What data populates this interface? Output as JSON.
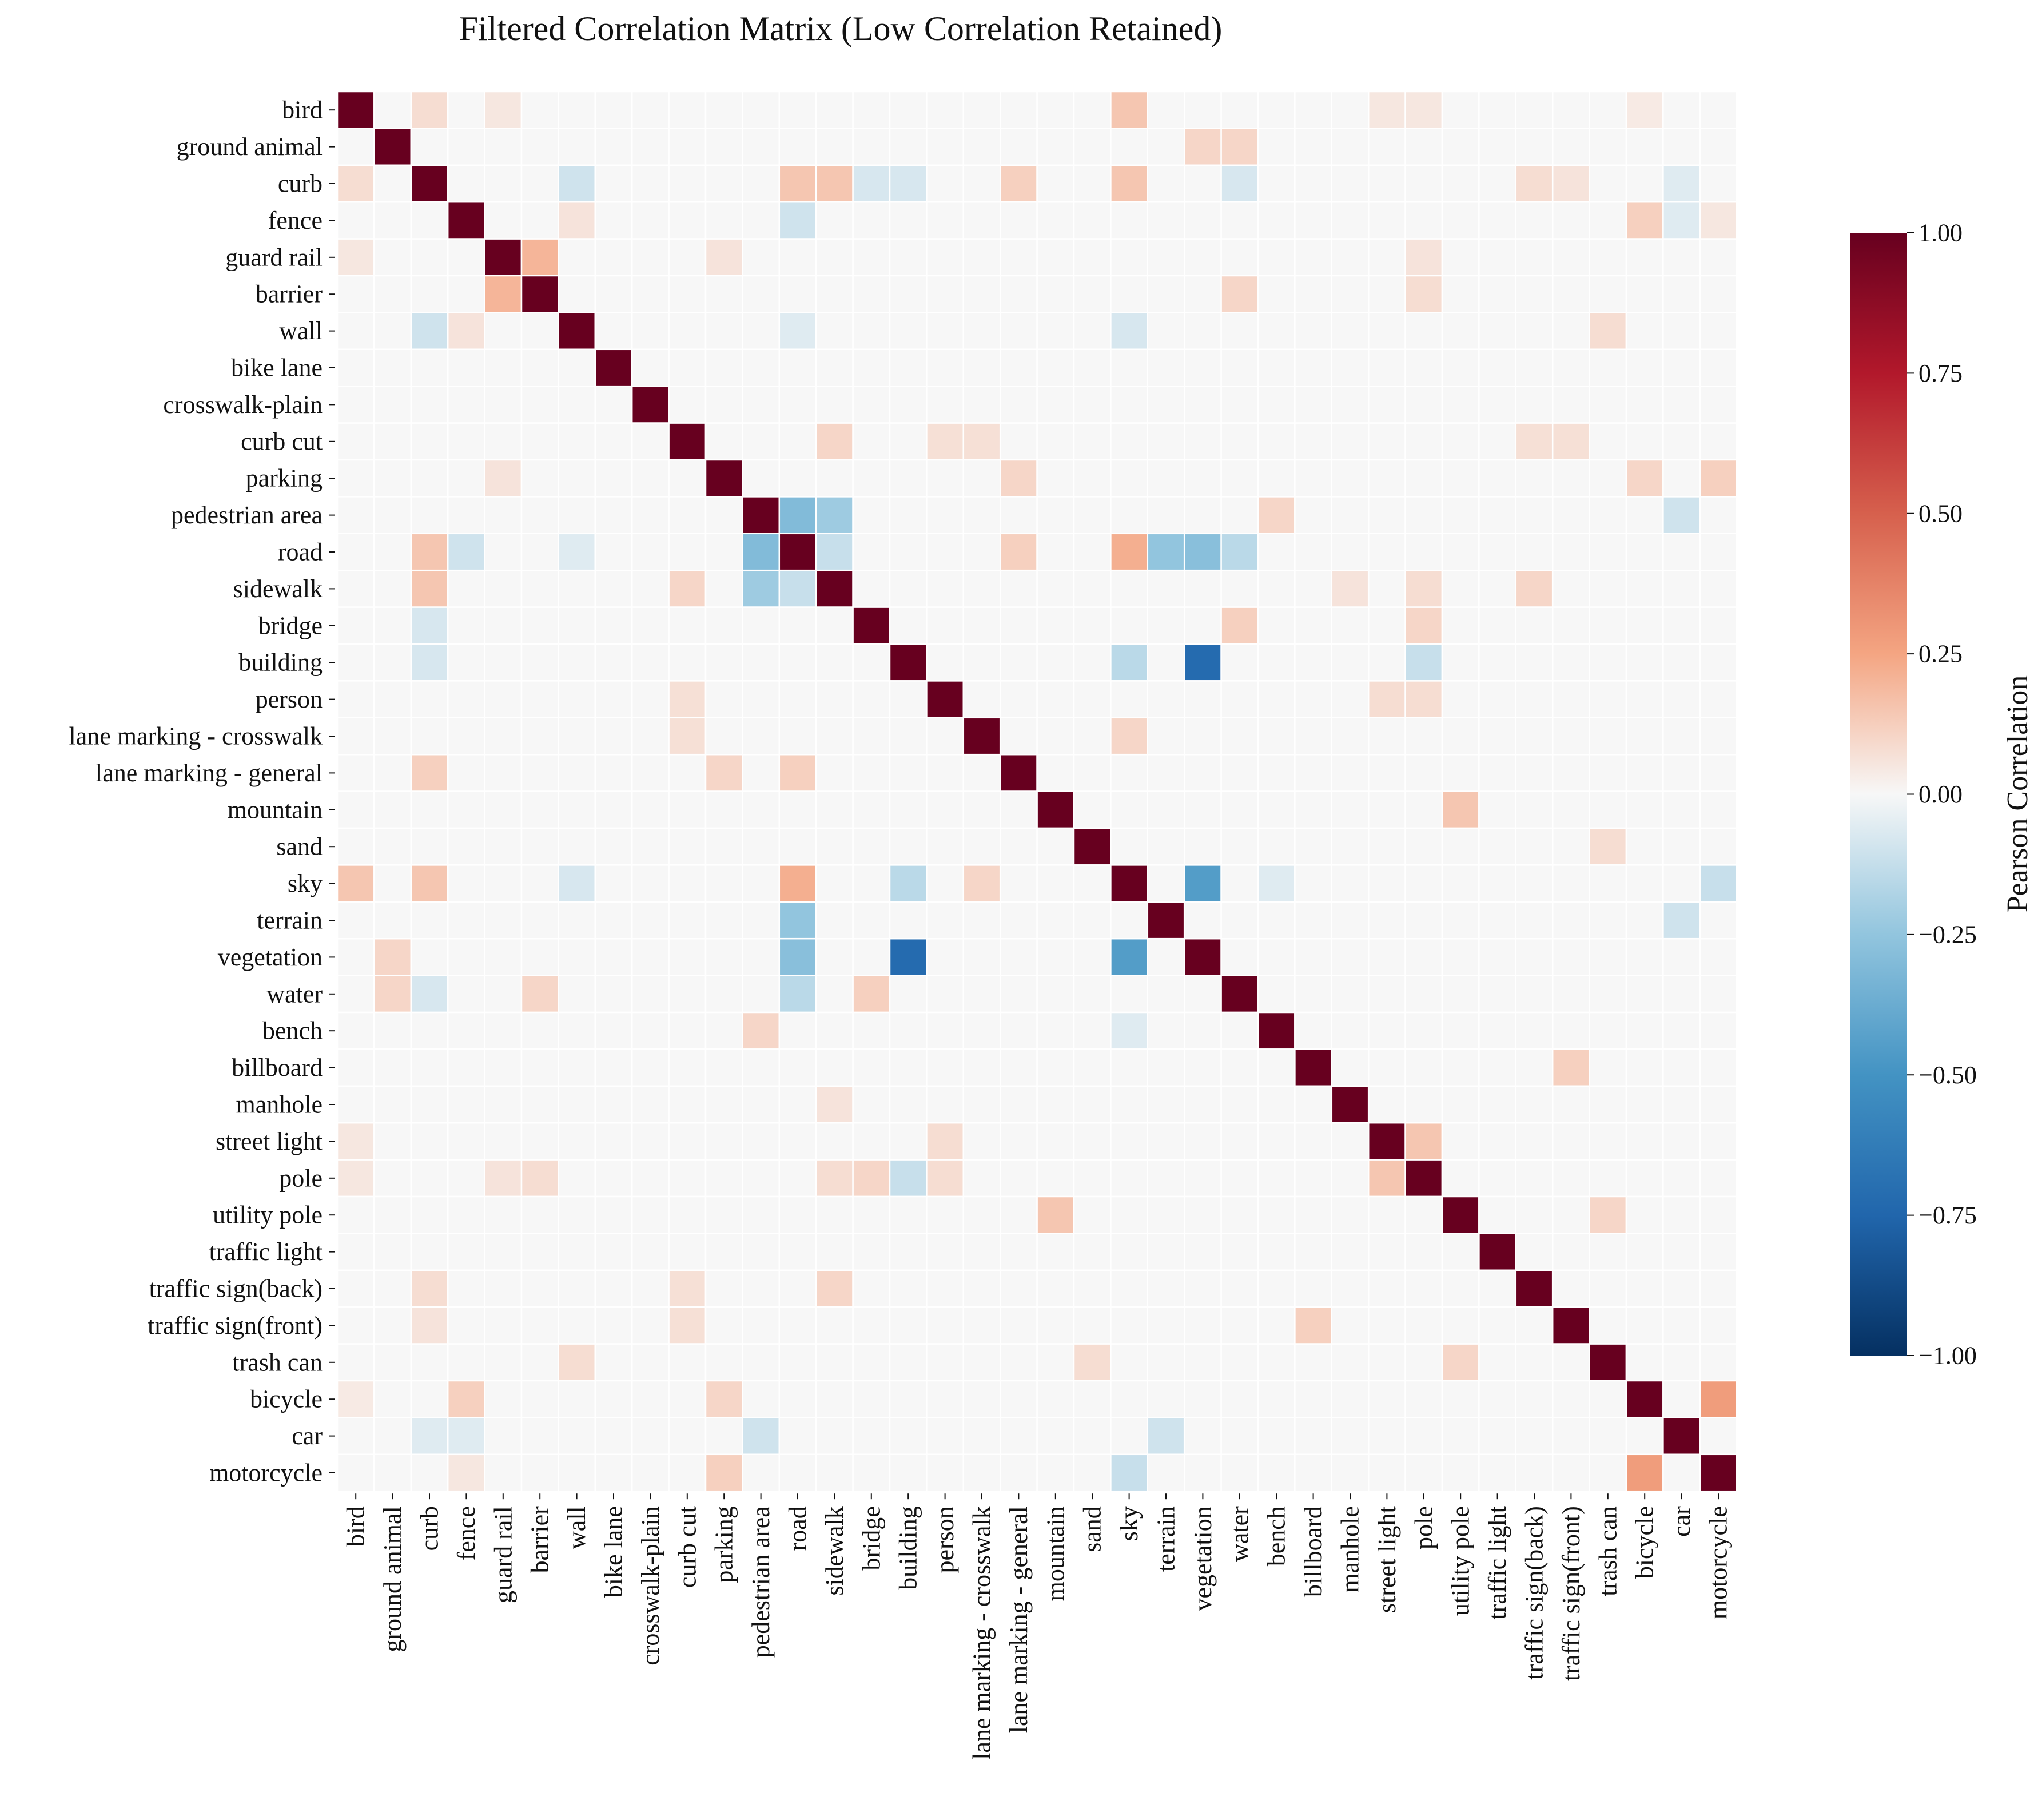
{
  "chart_data": {
    "type": "heatmap",
    "title": "Filtered Correlation Matrix (Low Correlation Retained)",
    "labels": [
      "bird",
      "ground animal",
      "curb",
      "fence",
      "guard rail",
      "barrier",
      "wall",
      "bike lane",
      "crosswalk-plain",
      "curb cut",
      "parking",
      "pedestrian area",
      "road",
      "sidewalk",
      "bridge",
      "building",
      "person",
      "lane marking - crosswalk",
      "lane marking - general",
      "mountain",
      "sand",
      "sky",
      "terrain",
      "vegetation",
      "water",
      "bench",
      "billboard",
      "manhole",
      "street light",
      "pole",
      "utility pole",
      "traffic light",
      "traffic sign(back)",
      "traffic sign(front)",
      "trash can",
      "bicycle",
      "car",
      "motorcycle"
    ],
    "colorbar": {
      "label": "Pearson Correlation",
      "vmin": -1.0,
      "vmax": 1.0,
      "ticks": [
        1.0,
        0.75,
        0.5,
        0.25,
        0.0,
        -0.25,
        -0.5,
        -0.75,
        -1.0
      ],
      "tick_labels": [
        "1.00",
        "0.75",
        "0.50",
        "0.25",
        "0.00",
        "−0.25",
        "−0.50",
        "−0.75",
        "−1.00"
      ]
    },
    "diagonal": 1.0,
    "off_diagonal_pairs": [
      [
        "bird",
        "curb",
        0.08
      ],
      [
        "bird",
        "guard rail",
        0.05
      ],
      [
        "bird",
        "sky",
        0.15
      ],
      [
        "bird",
        "pole",
        0.05
      ],
      [
        "bird",
        "street light",
        0.05
      ],
      [
        "bird",
        "bicycle",
        0.04
      ],
      [
        "ground animal",
        "vegetation",
        0.1
      ],
      [
        "ground animal",
        "water",
        0.1
      ],
      [
        "curb",
        "wall",
        -0.1
      ],
      [
        "curb",
        "road",
        0.15
      ],
      [
        "curb",
        "sidewalk",
        0.15
      ],
      [
        "curb",
        "sky",
        0.15
      ],
      [
        "curb",
        "lane marking - general",
        0.12
      ],
      [
        "curb",
        "bridge",
        -0.08
      ],
      [
        "curb",
        "building",
        -0.08
      ],
      [
        "curb",
        "water",
        -0.08
      ],
      [
        "curb",
        "car",
        -0.06
      ],
      [
        "curb",
        "traffic sign(back)",
        0.08
      ],
      [
        "curb",
        "traffic sign(front)",
        0.06
      ],
      [
        "fence",
        "road",
        -0.1
      ],
      [
        "fence",
        "bicycle",
        0.12
      ],
      [
        "fence",
        "wall",
        0.06
      ],
      [
        "fence",
        "car",
        -0.06
      ],
      [
        "fence",
        "motorcycle",
        0.05
      ],
      [
        "guard rail",
        "barrier",
        0.2
      ],
      [
        "guard rail",
        "parking",
        0.06
      ],
      [
        "guard rail",
        "pole",
        0.06
      ],
      [
        "barrier",
        "water",
        0.1
      ],
      [
        "barrier",
        "pole",
        0.08
      ],
      [
        "wall",
        "sky",
        -0.08
      ],
      [
        "wall",
        "trash can",
        0.08
      ],
      [
        "wall",
        "road",
        -0.06
      ],
      [
        "curb cut",
        "sidewalk",
        0.1
      ],
      [
        "curb cut",
        "person",
        0.07
      ],
      [
        "curb cut",
        "lane marking - crosswalk",
        0.07
      ],
      [
        "curb cut",
        "traffic sign(back)",
        0.07
      ],
      [
        "curb cut",
        "traffic sign(front)",
        0.07
      ],
      [
        "parking",
        "lane marking - general",
        0.1
      ],
      [
        "parking",
        "bicycle",
        0.1
      ],
      [
        "parking",
        "motorcycle",
        0.12
      ],
      [
        "pedestrian area",
        "road",
        -0.3
      ],
      [
        "pedestrian area",
        "sidewalk",
        -0.22
      ],
      [
        "pedestrian area",
        "bench",
        0.1
      ],
      [
        "pedestrian area",
        "car",
        -0.1
      ],
      [
        "road",
        "sky",
        0.22
      ],
      [
        "road",
        "terrain",
        -0.25
      ],
      [
        "road",
        "vegetation",
        -0.28
      ],
      [
        "road",
        "water",
        -0.15
      ],
      [
        "road",
        "lane marking - general",
        0.12
      ],
      [
        "road",
        "sidewalk",
        -0.12
      ],
      [
        "sidewalk",
        "traffic sign(back)",
        0.1
      ],
      [
        "sidewalk",
        "pole",
        0.08
      ],
      [
        "sidewalk",
        "manhole",
        0.06
      ],
      [
        "bridge",
        "water",
        0.12
      ],
      [
        "bridge",
        "pole",
        0.1
      ],
      [
        "building",
        "vegetation",
        -0.72
      ],
      [
        "building",
        "sky",
        -0.15
      ],
      [
        "building",
        "pole",
        -0.12
      ],
      [
        "person",
        "street light",
        0.08
      ],
      [
        "person",
        "pole",
        0.08
      ],
      [
        "lane marking - crosswalk",
        "sky",
        0.1
      ],
      [
        "mountain",
        "utility pole",
        0.15
      ],
      [
        "sand",
        "trash can",
        0.08
      ],
      [
        "sky",
        "vegetation",
        -0.45
      ],
      [
        "sky",
        "motorcycle",
        -0.12
      ],
      [
        "sky",
        "bench",
        -0.06
      ],
      [
        "terrain",
        "car",
        -0.1
      ],
      [
        "billboard",
        "traffic sign(front)",
        0.12
      ],
      [
        "street light",
        "pole",
        0.15
      ],
      [
        "utility pole",
        "trash can",
        0.1
      ],
      [
        "bicycle",
        "motorcycle",
        0.28
      ]
    ]
  }
}
